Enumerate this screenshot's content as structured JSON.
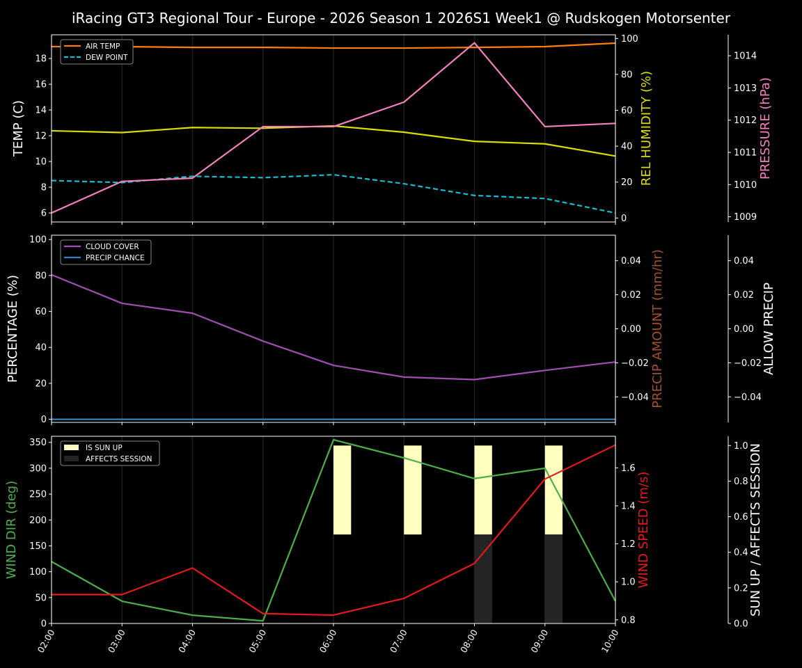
{
  "title": "iRacing GT3 Regional Tour - Europe - 2026 Season 1 2026S1 Week1 @ Rudskogen Motorsenter",
  "chart_data": [
    {
      "type": "line",
      "x": [
        "02:00",
        "03:00",
        "04:00",
        "05:00",
        "06:00",
        "07:00",
        "08:00",
        "09:00",
        "10:00"
      ],
      "grid": "vertical",
      "legend_placement": "top-left",
      "axes": {
        "left": {
          "label": "TEMP (C)",
          "label_color": "#ffffff",
          "ylim": [
            5.3,
            19.84
          ],
          "ticks": [
            6,
            8,
            10,
            12,
            14,
            16,
            18
          ],
          "tick_labels": [
            "6",
            "8",
            "10",
            "12",
            "14",
            "16",
            "18"
          ]
        },
        "right1": {
          "label": "REL HUMIDITY (%)",
          "label_color": "#dcdc00",
          "ylim": [
            -2.2,
            102.05
          ],
          "ticks": [
            0,
            20,
            40,
            60,
            80,
            100
          ],
          "tick_labels": [
            "0",
            "20",
            "40",
            "60",
            "80",
            "100"
          ]
        },
        "right2": {
          "label": "PRESSURE (hPa)",
          "label_color": "#f781bf",
          "ylim": [
            1008.84,
            1014.65
          ],
          "ticks": [
            1009,
            1010,
            1011,
            1012,
            1013,
            1014
          ],
          "tick_labels": [
            "1009",
            "1010",
            "1011",
            "1012",
            "1013",
            "1014"
          ]
        }
      },
      "series": [
        {
          "name": "AIR TEMP",
          "axis": "left",
          "color": "#ff7f0e",
          "dashed": false,
          "in_legend": true,
          "values": [
            18.92,
            18.92,
            18.86,
            18.86,
            18.81,
            18.81,
            18.86,
            18.92,
            19.19
          ]
        },
        {
          "name": "DEW POINT",
          "axis": "left",
          "color": "#17becf",
          "dashed": true,
          "in_legend": true,
          "values": [
            8.52,
            8.36,
            8.85,
            8.74,
            8.97,
            8.27,
            7.36,
            7.12,
            6.0
          ]
        },
        {
          "axis": "right1",
          "color": "#dcdc00",
          "dashed": false,
          "in_legend": false,
          "values": [
            48.6,
            47.6,
            50.4,
            50.0,
            51.3,
            47.8,
            42.7,
            41.3,
            34.5
          ]
        },
        {
          "axis": "right2",
          "color": "#f781bf",
          "dashed": false,
          "in_legend": false,
          "values": [
            1009.12,
            1010.1,
            1010.2,
            1011.8,
            1011.8,
            1012.56,
            1014.4,
            1011.8,
            1011.9
          ]
        }
      ]
    },
    {
      "type": "line",
      "x": [
        "02:00",
        "03:00",
        "04:00",
        "05:00",
        "06:00",
        "07:00",
        "08:00",
        "09:00",
        "10:00"
      ],
      "grid": "vertical",
      "legend_placement": "top-left",
      "axes": {
        "left": {
          "label": "PERCENTAGE (%)",
          "label_color": "#ffffff",
          "ylim": [
            -1.7,
            102.4
          ],
          "ticks": [
            0,
            20,
            40,
            60,
            80,
            100
          ],
          "tick_labels": [
            "0",
            "20",
            "40",
            "60",
            "80",
            "100"
          ]
        },
        "right1": {
          "label": "PRECIP AMOUNT (mm/hr)",
          "label_color": "#a0522d",
          "ylim": [
            -0.055,
            0.055
          ],
          "ticks": [
            -0.04,
            -0.02,
            0,
            0.02,
            0.04
          ],
          "tick_labels": [
            "−0.04",
            "−0.02",
            "0.00",
            "0.02",
            "0.04"
          ]
        },
        "right2": {
          "label": "ALLOW PRECIP",
          "label_color": "#ffffff",
          "ylim": [
            -0.055,
            0.055
          ],
          "ticks": [
            -0.04,
            -0.02,
            0,
            0.02,
            0.04
          ],
          "tick_labels": [
            "−0.04",
            "−0.02",
            "0.00",
            "0.02",
            "0.04"
          ]
        }
      },
      "series": [
        {
          "name": "CLOUD COVER",
          "axis": "left",
          "color": "#a04fb0",
          "dashed": false,
          "in_legend": true,
          "values": [
            80.4,
            64.5,
            59.0,
            43.5,
            30.0,
            23.5,
            22.1,
            27.2,
            31.9
          ]
        },
        {
          "name": "PRECIP CHANCE",
          "axis": "left",
          "color": "#3a80c0",
          "dashed": false,
          "in_legend": true,
          "values": [
            0,
            0,
            0,
            0,
            0,
            0,
            0,
            0,
            0
          ]
        }
      ]
    },
    {
      "type": "line",
      "x": [
        "02:00",
        "03:00",
        "04:00",
        "05:00",
        "06:00",
        "07:00",
        "08:00",
        "09:00",
        "10:00"
      ],
      "grid": "vertical",
      "legend_placement": "top-left",
      "axes": {
        "left": {
          "label": "WIND DIR (deg)",
          "label_color": "#4daf4a",
          "ylim": [
            0,
            361.7
          ],
          "ticks": [
            0,
            50,
            100,
            150,
            200,
            250,
            300,
            350
          ],
          "tick_labels": [
            "0",
            "50",
            "100",
            "150",
            "200",
            "250",
            "300",
            "350"
          ]
        },
        "right1": {
          "label": "WIND SPEED (m/s)",
          "label_color": "#e41a1c",
          "ylim": [
            0.781,
            1.766
          ],
          "ticks": [
            0.8,
            1.0,
            1.2,
            1.4,
            1.6
          ],
          "tick_labels": [
            "0.8",
            "1.0",
            "1.2",
            "1.4",
            "1.6"
          ]
        },
        "right2": {
          "label": "SUN UP / AFFECTS SESSION",
          "label_color": "#ffffff",
          "ylim": [
            0,
            1.052
          ],
          "ticks": [
            0,
            0.2,
            0.4,
            0.6,
            0.8,
            1.0
          ],
          "tick_labels": [
            "0.0",
            "0.2",
            "0.4",
            "0.6",
            "0.8",
            "1.0"
          ]
        }
      },
      "bars": [
        {
          "name": "IS SUN UP",
          "axis": "right2",
          "color": "#ffffc0",
          "base": 0.5,
          "values": [
            0,
            0,
            0,
            0,
            0.5,
            0.5,
            0.5,
            0.5,
            0
          ]
        },
        {
          "name": "AFFECTS SESSION",
          "axis": "right2",
          "color": "#242424",
          "base": 0,
          "values": [
            0,
            0,
            0,
            0,
            0,
            0,
            0.5,
            0.5,
            0
          ]
        }
      ],
      "series": [
        {
          "axis": "left",
          "color": "#4daf4a",
          "dashed": false,
          "in_legend": false,
          "values": [
            119.6,
            43,
            16,
            5,
            355,
            320,
            280,
            300,
            43
          ]
        },
        {
          "axis": "right1",
          "color": "#e41a1c",
          "dashed": false,
          "in_legend": false,
          "values": [
            0.933,
            0.933,
            1.073,
            0.833,
            0.825,
            0.913,
            1.097,
            1.541,
            1.72
          ]
        }
      ]
    }
  ]
}
